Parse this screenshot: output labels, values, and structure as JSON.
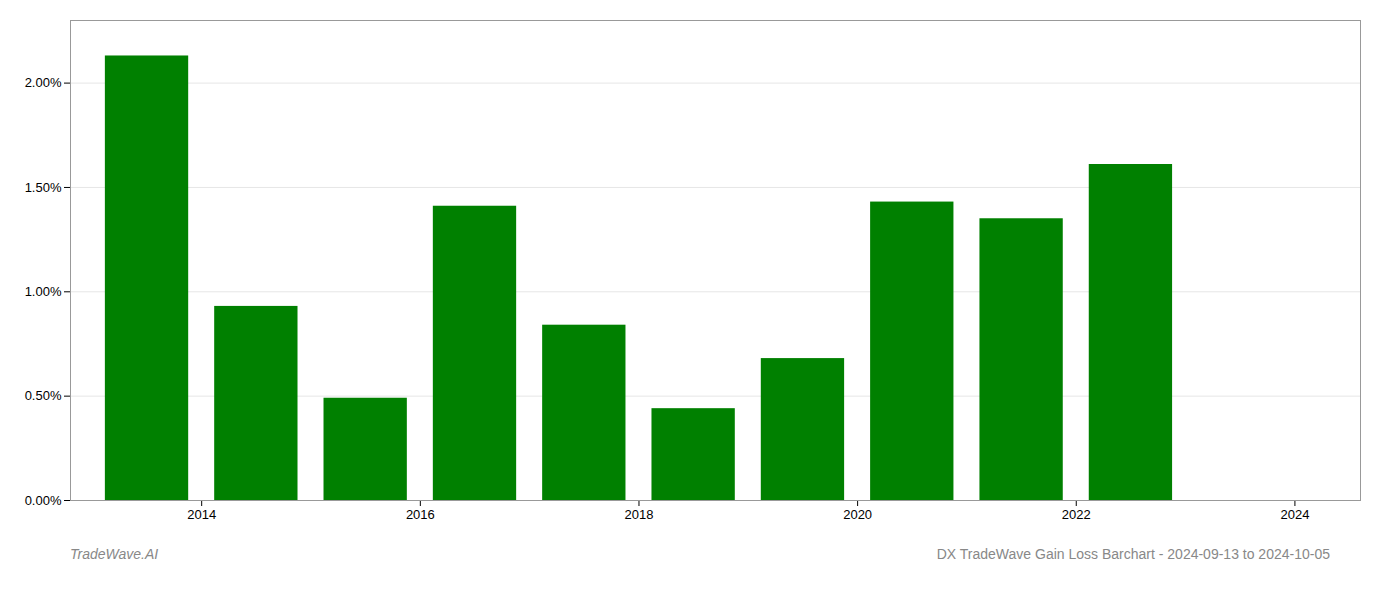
{
  "chart_data": {
    "type": "bar",
    "title": "DX TradeWave Gain Loss Barchart - 2024-09-13 to 2024-10-05",
    "annotations": [
      "TradeWave.AI"
    ],
    "x": [
      2013,
      2014,
      2015,
      2016,
      2017,
      2018,
      2019,
      2020,
      2021,
      2022
    ],
    "values": [
      2.13,
      0.93,
      0.49,
      1.41,
      0.84,
      0.44,
      0.68,
      1.43,
      1.35,
      1.61
    ],
    "color": "#008000",
    "xlim": [
      2012.8,
      2024.6
    ],
    "xticks": [
      2014,
      2016,
      2018,
      2020,
      2022,
      2024
    ],
    "ylim": [
      0,
      2.3
    ],
    "yticks": [
      {
        "value": 0.0,
        "label": "0.00%"
      },
      {
        "value": 0.5,
        "label": "0.50%"
      },
      {
        "value": 1.0,
        "label": "1.00%"
      },
      {
        "value": 1.5,
        "label": "1.50%"
      },
      {
        "value": 2.0,
        "label": "2.00%"
      }
    ],
    "grid": true
  }
}
